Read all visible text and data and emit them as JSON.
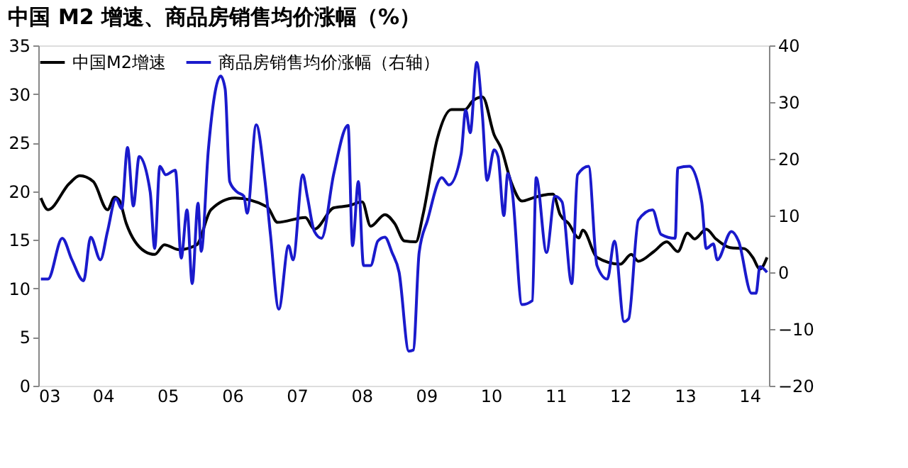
{
  "chart_data": {
    "type": "line",
    "title": "中国 M2 增速、商品房销售均价涨幅（%）",
    "xlim": [
      2003,
      2014.3
    ],
    "xticks": [
      {
        "value": 2003,
        "label": "03"
      },
      {
        "value": 2004,
        "label": "04"
      },
      {
        "value": 2005,
        "label": "05"
      },
      {
        "value": 2006,
        "label": "06"
      },
      {
        "value": 2007,
        "label": "07"
      },
      {
        "value": 2008,
        "label": "08"
      },
      {
        "value": 2009,
        "label": "09"
      },
      {
        "value": 2010,
        "label": "10"
      },
      {
        "value": 2011,
        "label": "11"
      },
      {
        "value": 2012,
        "label": "12"
      },
      {
        "value": 2013,
        "label": "13"
      },
      {
        "value": 2014,
        "label": "14"
      }
    ],
    "ylim": [
      0,
      35
    ],
    "yticks": [
      0,
      5,
      10,
      15,
      20,
      25,
      30,
      35
    ],
    "y2lim": [
      -20,
      40
    ],
    "y2ticks": [
      -20,
      -10,
      0,
      10,
      20,
      30,
      40
    ],
    "grid": false,
    "legend": "top",
    "line_style": "solid",
    "marker": "none",
    "series": [
      {
        "name": "中国M2增速",
        "color": "#000000",
        "axis": "y",
        "x": [
          2003.04,
          2003.15,
          2003.48,
          2003.64,
          2003.85,
          2004.07,
          2004.18,
          2004.25,
          2004.36,
          2004.65,
          2004.8,
          2004.95,
          2005.17,
          2005.45,
          2005.67,
          2006.04,
          2006.54,
          2006.7,
          2007.13,
          2007.27,
          2007.57,
          2007.79,
          2008.01,
          2008.14,
          2008.36,
          2008.51,
          2008.66,
          2008.84,
          2008.95,
          2009.17,
          2009.39,
          2009.6,
          2009.72,
          2009.87,
          2010.05,
          2010.16,
          2010.31,
          2010.48,
          2010.64,
          2010.81,
          2010.96,
          2011.07,
          2011.2,
          2011.36,
          2011.42,
          2011.64,
          2012.0,
          2012.17,
          2012.28,
          2012.52,
          2012.72,
          2012.89,
          2013.04,
          2013.15,
          2013.33,
          2013.48,
          2013.7,
          2013.92,
          2014.05,
          2014.16,
          2014.27
        ],
        "values": [
          19.3,
          18.1,
          20.8,
          21.6,
          21.0,
          18.1,
          19.4,
          19.1,
          16.7,
          13.8,
          13.5,
          14.5,
          14.0,
          14.5,
          18.1,
          19.3,
          18.4,
          16.8,
          17.3,
          16.1,
          18.3,
          18.5,
          18.9,
          16.4,
          17.6,
          16.7,
          14.9,
          14.8,
          17.6,
          25.4,
          28.4,
          28.4,
          29.3,
          29.7,
          25.8,
          24.4,
          21.0,
          19.0,
          19.3,
          19.6,
          19.7,
          17.6,
          16.7,
          15.2,
          16.0,
          13.2,
          12.5,
          13.5,
          12.8,
          13.8,
          14.8,
          13.8,
          15.7,
          15.1,
          16.1,
          15.1,
          14.2,
          14.1,
          13.2,
          12.0,
          13.2
        ]
      },
      {
        "name": "商品房销售均价涨幅（右轴）",
        "color": "#1a1acc",
        "axis": "y2",
        "x": [
          2003.04,
          2003.15,
          2003.37,
          2003.52,
          2003.7,
          2003.81,
          2003.96,
          2004.07,
          2004.2,
          2004.29,
          2004.38,
          2004.47,
          2004.56,
          2004.73,
          2004.8,
          2004.88,
          2004.97,
          2005.12,
          2005.21,
          2005.3,
          2005.38,
          2005.47,
          2005.52,
          2005.63,
          2005.82,
          2005.89,
          2005.96,
          2006.07,
          2006.18,
          2006.23,
          2006.37,
          2006.5,
          2006.59,
          2006.72,
          2006.87,
          2006.94,
          2007.09,
          2007.16,
          2007.27,
          2007.38,
          2007.57,
          2007.79,
          2007.86,
          2007.95,
          2008.03,
          2008.14,
          2008.25,
          2008.36,
          2008.47,
          2008.58,
          2008.73,
          2008.8,
          2008.89,
          2009.02,
          2009.24,
          2009.35,
          2009.54,
          2009.61,
          2009.68,
          2009.78,
          2009.87,
          2009.94,
          2010.05,
          2010.11,
          2010.2,
          2010.26,
          2010.33,
          2010.48,
          2010.64,
          2010.7,
          2010.86,
          2010.99,
          2011.1,
          2011.25,
          2011.34,
          2011.51,
          2011.64,
          2011.8,
          2011.91,
          2012.06,
          2012.13,
          2012.28,
          2012.5,
          2012.63,
          2012.85,
          2012.89,
          2013.07,
          2013.26,
          2013.33,
          2013.44,
          2013.5,
          2013.72,
          2013.83,
          2014.03,
          2014.1,
          2014.16,
          2014.27
        ],
        "values": [
          -1.2,
          -1.2,
          6.0,
          2.2,
          -1.5,
          6.2,
          2.2,
          7.2,
          13.0,
          11.2,
          22.0,
          11.7,
          20.4,
          14.2,
          4.2,
          18.7,
          17.2,
          18.0,
          2.5,
          11.0,
          -2.0,
          12.2,
          3.7,
          21.6,
          34.6,
          32.3,
          16.0,
          14.2,
          13.4,
          10.4,
          26.0,
          16.7,
          6.7,
          -6.5,
          4.7,
          2.2,
          17.2,
          13.4,
          7.2,
          6.0,
          17.4,
          25.9,
          4.7,
          16.0,
          1.2,
          1.2,
          5.5,
          6.2,
          3.5,
          0.0,
          -13.9,
          -13.7,
          3.5,
          9.2,
          16.7,
          15.4,
          20.9,
          28.6,
          24.6,
          37.0,
          27.4,
          16.2,
          21.6,
          20.4,
          10.0,
          17.4,
          14.2,
          -5.7,
          -5.0,
          16.7,
          3.5,
          13.4,
          12.4,
          -2.0,
          17.2,
          18.7,
          1.2,
          -1.2,
          5.5,
          -8.7,
          -8.2,
          9.2,
          11.0,
          6.7,
          6.0,
          18.4,
          18.7,
          12.4,
          4.2,
          5.0,
          2.2,
          7.2,
          5.5,
          -3.7,
          -3.7,
          1.0,
          0.0
        ]
      }
    ]
  }
}
